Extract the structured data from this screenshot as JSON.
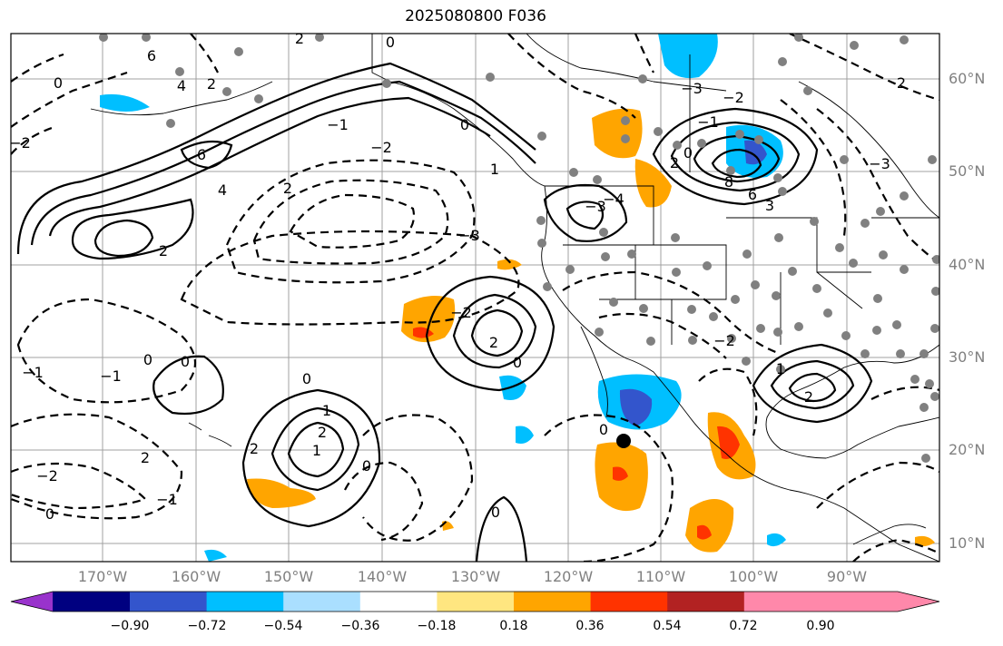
{
  "title": "2025080800 F036",
  "latitude_labels": [
    "60°N",
    "50°N",
    "40°N",
    "30°N",
    "20°N",
    "10°N"
  ],
  "longitude_labels": [
    "170°W",
    "160°W",
    "150°W",
    "140°W",
    "130°W",
    "120°W",
    "110°W",
    "100°W",
    "90°W"
  ],
  "colorbar": {
    "colors": [
      "#9933cc",
      "#000080",
      "#3355cc",
      "#00bfff",
      "#aadfff",
      "#ffffff",
      "#ffe680",
      "#ffa500",
      "#ff3300",
      "#b22222",
      "#ff88aa"
    ],
    "ticks": [
      "−0.90",
      "−0.72",
      "−0.54",
      "−0.36",
      "−0.18",
      "0.18",
      "0.36",
      "0.54",
      "0.72",
      "0.90"
    ]
  },
  "contour_labels": [
    "2",
    "0",
    "6",
    "4",
    "2",
    "−1",
    "2",
    "−2",
    "−3",
    "0",
    "1",
    "−2",
    "−1",
    "0",
    "2",
    "8",
    "6",
    "3",
    "−3",
    "2",
    "−2",
    "0",
    "1",
    "2",
    "1",
    "0",
    "2",
    "−2",
    "0",
    "2",
    "−1",
    "0",
    "0",
    "1",
    "2",
    "−1",
    "0",
    "−2",
    "−3",
    "0",
    "0",
    "6",
    "4",
    "2",
    "0",
    "−1",
    "−2",
    "−4",
    "−3",
    "2"
  ],
  "marker_color": "#000000",
  "station_dot_color": "#808080"
}
